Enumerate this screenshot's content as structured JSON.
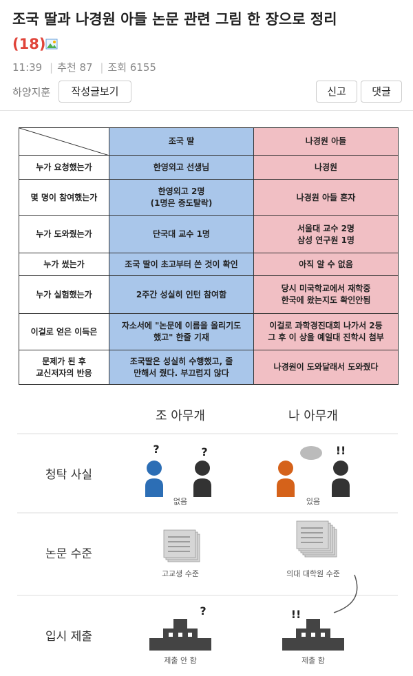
{
  "header": {
    "title": "조국 딸과 나경원 아들 논문 관련 그림 한 장으로 정리",
    "comment_count": "(18)",
    "time": "11:39",
    "recommend": "추천 87",
    "views": "조회 6155",
    "author": "하양지훈",
    "buttons": {
      "posts": "작성글보기",
      "report": "신고",
      "comment": "댓글"
    }
  },
  "table": {
    "columns": [
      "조국 딸",
      "나경원 아들"
    ],
    "rows": [
      {
        "label": [
          "누가 요청했는가"
        ],
        "left": [
          "한영외고 선생님"
        ],
        "right": [
          "나경원"
        ]
      },
      {
        "label": [
          "몇 명이 참여했는가"
        ],
        "left": [
          "한영외고 2명",
          "(1명은 중도탈락)"
        ],
        "right": [
          "나경원 아들 혼자"
        ]
      },
      {
        "label": [
          "누가 도와줬는가"
        ],
        "left": [
          "단국대 교수 1명"
        ],
        "right": [
          "서울대 교수 2명",
          "삼성 연구원 1명"
        ]
      },
      {
        "label": [
          "누가 썼는가"
        ],
        "left": [
          "조국 딸이 초고부터 쓴 것이 확인"
        ],
        "right": [
          "아직 알 수 없음"
        ]
      },
      {
        "label": [
          "누가 실험했는가"
        ],
        "left": [
          "2주간 성실히 인턴 참여함"
        ],
        "right": [
          "당시 미국학교에서 재학중",
          "한국에 왔는지도 확인안됨"
        ]
      },
      {
        "label": [
          "이걸로 얻은 이득은"
        ],
        "left": [
          "자소서에 \"논문에 이름을 올리기도",
          "했고\" 한줄 기재"
        ],
        "right": [
          "이걸로 과학경진대회 나가서 2등",
          "그 후 이 상을 예일대 진학시 첨부"
        ]
      },
      {
        "label": [
          "문제가 된 후",
          "교신저자의 반응"
        ],
        "left": [
          "조국딸은 성실히 수행했고, 줄",
          "만해서 줬다. 부끄럽지 않다"
        ],
        "right": [
          "나경원이 도와달래서 도와줬다"
        ]
      }
    ]
  },
  "info": {
    "columns": [
      "조 아무개",
      "나 아무개"
    ],
    "marks": {
      "question": "?",
      "exclaim": "!!"
    },
    "rows": [
      {
        "label": "청탁 사실",
        "left": "없음",
        "right": "있음"
      },
      {
        "label": "논문 수준",
        "left": "고교생 수준",
        "right": "의대 대학원 수준"
      },
      {
        "label": "입시 제출",
        "left": "제출 안 함",
        "right": "제출 함"
      }
    ]
  }
}
